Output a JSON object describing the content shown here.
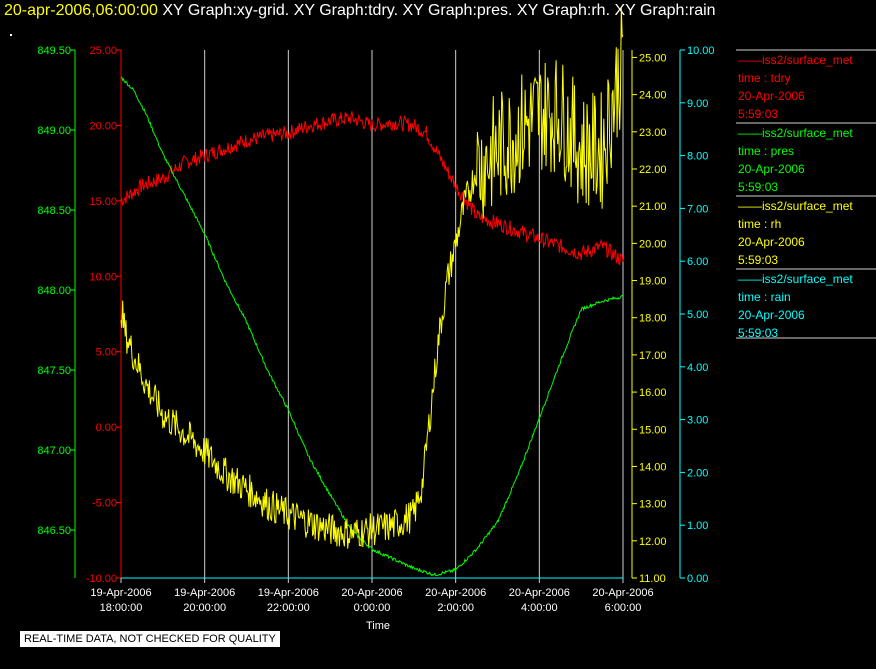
{
  "header": {
    "date": "20-apr-2006,06:00:00",
    "titles": [
      "XY Graph:xy-grid.",
      "XY Graph:tdry.",
      "XY Graph:pres.",
      "XY Graph:rh.",
      "XY Graph:rain"
    ]
  },
  "quality_notice": "REAL-TIME DATA, NOT CHECKED FOR QUALITY",
  "colors": {
    "tdry": "#ff0000",
    "pres": "#00ff00",
    "rh": "#ffff00",
    "rain": "#00ffff",
    "grid": "#cfcfcf"
  },
  "chart_data": {
    "type": "line",
    "xlabel": "Time",
    "x_ticks": [
      {
        "hour": 18,
        "line1": "19-Apr-2006",
        "line2": "18:00:00"
      },
      {
        "hour": 20,
        "line1": "19-Apr-2006",
        "line2": "20:00:00"
      },
      {
        "hour": 22,
        "line1": "19-Apr-2006",
        "line2": "22:00:00"
      },
      {
        "hour": 24,
        "line1": "20-Apr-2006",
        "line2": "0:00:00"
      },
      {
        "hour": 26,
        "line1": "20-Apr-2006",
        "line2": "2:00:00"
      },
      {
        "hour": 28,
        "line1": "20-Apr-2006",
        "line2": "4:00:00"
      },
      {
        "hour": 30,
        "line1": "20-Apr-2006",
        "line2": "6:00:00"
      }
    ],
    "xlim_hours": [
      18,
      30
    ],
    "axes": {
      "pres": {
        "min": 846.2,
        "max": 849.5,
        "ticks": [
          "846.50",
          "847.00",
          "847.50",
          "848.00",
          "848.50",
          "849.00",
          "849.50"
        ]
      },
      "tdry": {
        "min": -10,
        "max": 25,
        "ticks": [
          "-10.00",
          "-5.00",
          "0.00",
          "5.00",
          "10.00",
          "15.00",
          "20.00",
          "25.00"
        ]
      },
      "rh": {
        "min": 11,
        "max": 25.2,
        "ticks": [
          "11.00",
          "12.00",
          "13.00",
          "14.00",
          "15.00",
          "16.00",
          "17.00",
          "18.00",
          "19.00",
          "20.00",
          "21.00",
          "22.00",
          "23.00",
          "24.00",
          "25.00"
        ]
      },
      "rain": {
        "min": 0,
        "max": 10,
        "ticks": [
          "0.00",
          "1.00",
          "2.00",
          "3.00",
          "4.00",
          "5.00",
          "6.00",
          "7.00",
          "8.00",
          "9.00",
          "10.00"
        ]
      }
    },
    "series": [
      {
        "key": "tdry",
        "name": "iss2/surface_met",
        "time_label": "time : tdry",
        "date": "20-Apr-2006",
        "clock": "5:59:03",
        "hours": [
          18,
          18.5,
          19,
          19.5,
          20,
          20.5,
          21,
          21.5,
          22,
          22.5,
          23,
          23.5,
          24,
          24.5,
          25,
          25.3,
          25.6,
          26,
          26.5,
          27,
          27.5,
          28,
          28.5,
          29,
          29.5,
          30
        ],
        "values": [
          15,
          16,
          16.5,
          17.5,
          18,
          18.5,
          19,
          19.3,
          19.5,
          20,
          20.3,
          20.5,
          20,
          20.2,
          20,
          19.5,
          18,
          16,
          14,
          13.5,
          13,
          12.5,
          12,
          11.5,
          12,
          11
        ]
      },
      {
        "key": "pres",
        "name": "iss2/surface_met",
        "time_label": "time : pres",
        "date": "20-Apr-2006",
        "clock": "5:59:03",
        "hours": [
          18,
          18.3,
          18.6,
          19,
          19.5,
          20,
          20.5,
          21,
          21.5,
          22,
          22.5,
          23,
          23.5,
          24,
          24.5,
          25,
          25.5,
          26,
          26.5,
          27,
          27.5,
          28,
          28.5,
          29,
          29.5,
          30
        ],
        "values": [
          849.33,
          849.25,
          849.1,
          848.85,
          848.6,
          848.35,
          848.05,
          847.8,
          847.5,
          847.25,
          846.95,
          846.72,
          846.5,
          846.38,
          846.32,
          846.26,
          846.22,
          846.25,
          846.38,
          846.55,
          846.85,
          847.2,
          847.55,
          847.88,
          847.93,
          847.96
        ]
      },
      {
        "key": "rh",
        "name": "iss2/surface_met",
        "time_label": "time : rh",
        "date": "20-Apr-2006",
        "clock": "5:59:03",
        "hours": [
          18,
          18.1,
          18.3,
          18.6,
          19,
          19.5,
          20,
          20.5,
          21,
          21.5,
          22,
          22.5,
          23,
          23.5,
          24,
          24.5,
          25,
          25.2,
          25.4,
          25.6,
          25.8,
          26,
          26.2,
          26.5,
          27,
          27.5,
          28,
          28.5,
          29,
          29.5,
          30
        ],
        "values": [
          18.3,
          17.6,
          17,
          16.2,
          15.4,
          14.9,
          14.4,
          13.8,
          13.4,
          13,
          12.7,
          12.5,
          12.3,
          12.2,
          12.3,
          12.4,
          12.7,
          13.5,
          15.5,
          17.5,
          19,
          20,
          21,
          22,
          22.5,
          23,
          23.5,
          23.5,
          22.5,
          22.5,
          25
        ]
      },
      {
        "key": "rain",
        "name": "iss2/surface_met",
        "time_label": "time : rain",
        "date": "20-Apr-2006",
        "clock": "5:59:03",
        "hours": [
          18,
          30
        ],
        "values": [
          0,
          0
        ]
      }
    ]
  }
}
